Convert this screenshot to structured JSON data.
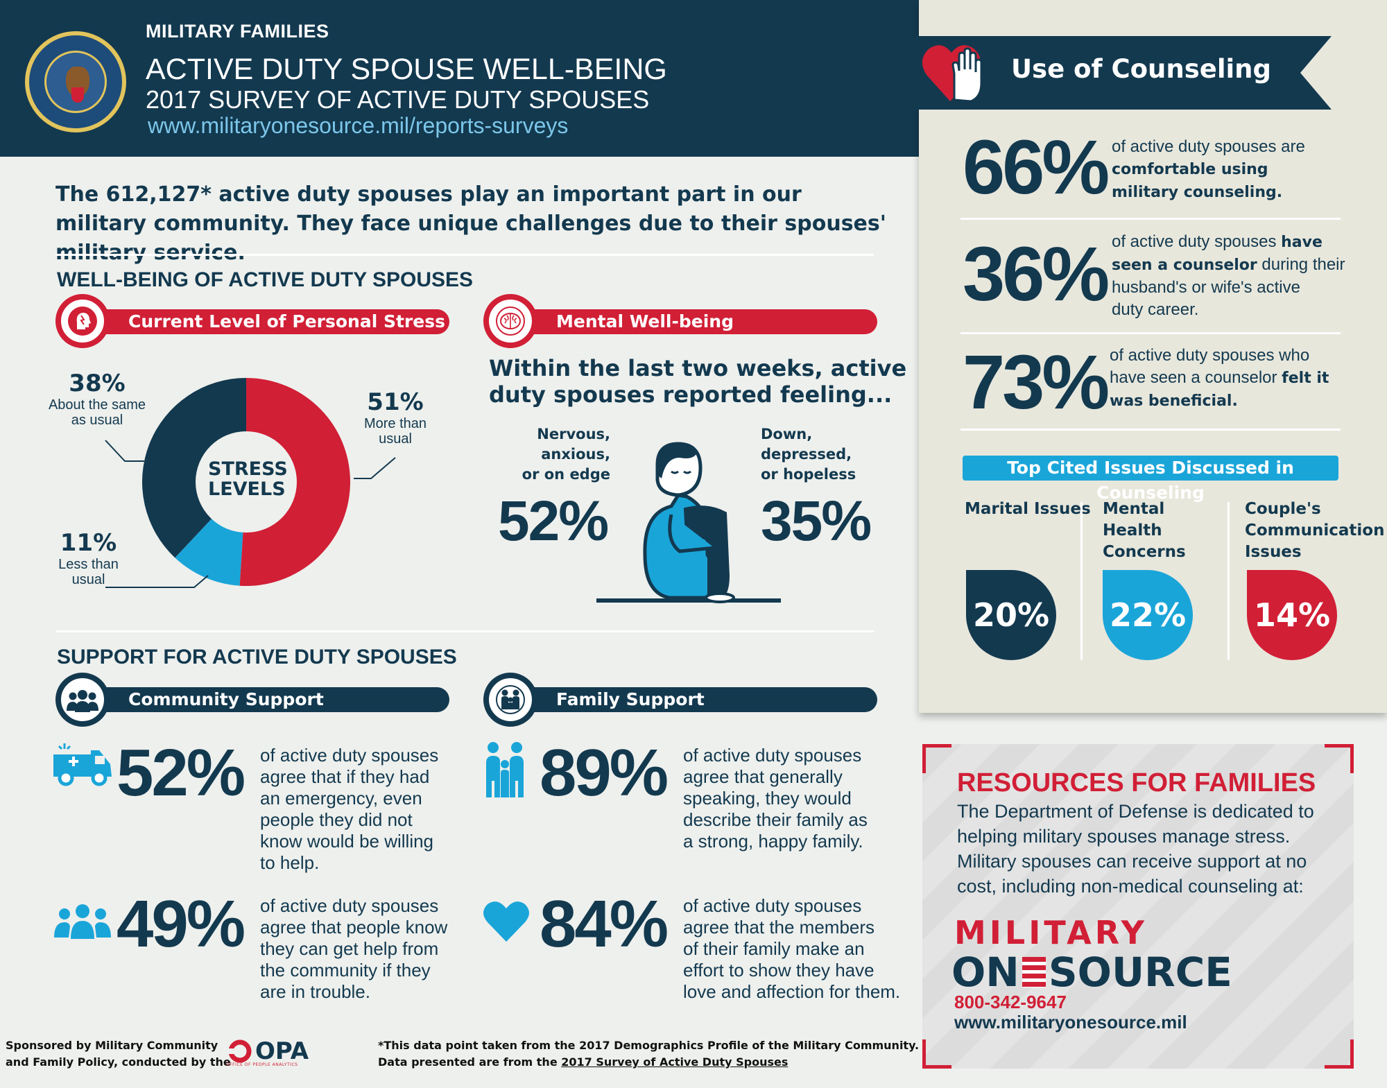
{
  "header": {
    "kicker": "MILITARY FAMILIES",
    "title": "ACTIVE DUTY SPOUSE WELL-BEING",
    "subtitle": "2017 SURVEY OF ACTIVE DUTY SPOUSES",
    "url": "www.militaryonesource.mil/reports-surveys",
    "seal_icon": "department-of-defense-seal"
  },
  "intro": "The 612,127* active duty spouses play an important part in our military community. They face unique challenges due to their spouses' military service.",
  "wellbeing": {
    "section_title": "WELL-BEING OF ACTIVE DUTY SPOUSES",
    "stress": {
      "banner": "Current Level of Personal Stress",
      "icon": "stress-head-icon",
      "center_label_1": "STRESS",
      "center_label_2": "LEVELS",
      "slices": [
        {
          "pct": "51%",
          "label": "More than usual",
          "value": 51,
          "color": "#d11f36"
        },
        {
          "pct": "11%",
          "label": "Less than usual",
          "value": 11,
          "color": "#1aa5d9"
        },
        {
          "pct": "38%",
          "label": "About the same as usual",
          "value": 38,
          "color": "#13394f"
        }
      ],
      "label_51_a": "More than",
      "label_51_b": "usual",
      "label_38_a": "About the same",
      "label_38_b": "as usual",
      "label_11_a": "Less than",
      "label_11_b": "usual"
    },
    "mental": {
      "banner": "Mental Well-being",
      "icon": "brain-icon",
      "question_1": "Within the last two weeks, active",
      "question_2": "duty spouses reported feeling...",
      "left_label": [
        "Nervous,",
        "anxious,",
        "or on edge"
      ],
      "left_pct": "52%",
      "right_label": [
        "Down,",
        "depressed,",
        "or hopeless"
      ],
      "right_pct": "35%"
    }
  },
  "support": {
    "section_title": "SUPPORT FOR ACTIVE DUTY SPOUSES",
    "community": {
      "banner": "Community Support",
      "icon": "group-icon",
      "stats": [
        {
          "pct": "52%",
          "icon": "ambulance-icon",
          "lines": [
            "of active duty spouses",
            "agree that if they had",
            "an emergency, even",
            "people they did not",
            "know would be willing",
            "to help."
          ]
        },
        {
          "pct": "49%",
          "icon": "people-icon",
          "lines": [
            "of active duty spouses",
            "agree that people know",
            "they can get help from",
            "the community if they",
            "are in trouble."
          ]
        }
      ]
    },
    "family": {
      "banner": "Family Support",
      "icon": "family-icon",
      "stats": [
        {
          "pct": "89%",
          "icon": "family-members-icon",
          "lines": [
            "of active duty spouses",
            "agree that generally",
            "speaking, they would",
            "describe their family as",
            "a strong, happy family."
          ]
        },
        {
          "pct": "84%",
          "icon": "heart-icon",
          "lines": [
            "of active duty spouses",
            "agree that the members",
            "of their family make an",
            "effort to show they have",
            "love and affection for them."
          ]
        }
      ]
    }
  },
  "counseling": {
    "title": "Use of Counseling",
    "icon": "heart-hand-icon",
    "stats": [
      {
        "pct": "66%",
        "parts": [
          [
            "of active duty spouses are",
            false
          ],
          [
            "comfortable using",
            true
          ],
          [
            "military counseling.",
            true
          ]
        ]
      },
      {
        "pct": "36%",
        "parts": [
          [
            "of active duty spouses ",
            false
          ],
          [
            "have",
            true
          ],
          [
            "seen a counselor",
            true
          ],
          [
            " during their",
            false
          ],
          [
            "husband's or wife's active",
            false
          ],
          [
            "duty career.",
            false
          ]
        ]
      },
      {
        "pct": "73%",
        "parts": [
          [
            "of active duty spouses who",
            false
          ],
          [
            "have seen a counselor ",
            false
          ],
          [
            "felt it",
            true
          ],
          [
            "was beneficial.",
            true
          ]
        ]
      }
    ],
    "text_66_1": "of active duty spouses are",
    "text_66_2": "comfortable using",
    "text_66_3": "military counseling.",
    "text_36_1a": "of active duty spouses ",
    "text_36_1b": "have",
    "text_36_2a": "seen a counselor",
    "text_36_2b": " during their",
    "text_36_3": "husband's or wife's active",
    "text_36_4": "duty career.",
    "text_73_1": "of active duty spouses who",
    "text_73_2a": "have seen a counselor ",
    "text_73_2b": "felt it",
    "text_73_3": "was beneficial.",
    "issues_title": "Top Cited Issues Discussed in Counseling",
    "issues": [
      {
        "label": [
          "Marital Issues"
        ],
        "pct": "20%",
        "color": "#13394f"
      },
      {
        "label": [
          "Mental",
          "Health",
          "Concerns"
        ],
        "pct": "22%",
        "color": "#1aa5d9"
      },
      {
        "label": [
          "Couple's",
          "Communication",
          "Issues"
        ],
        "pct": "14%",
        "color": "#d11f36"
      }
    ]
  },
  "resources": {
    "title": "RESOURCES FOR FAMILIES",
    "text": [
      "The Department of Defense is dedicated to",
      "helping military spouses manage stress.",
      "Military spouses can receive support at no",
      "cost, including non-medical counseling at:"
    ],
    "brand_1": "MILITARY",
    "brand_2a": "ON",
    "brand_2b": "SOURCE",
    "phone": "800-342-9647",
    "url": "www.militaryonesource.mil"
  },
  "footer": {
    "sponsor_1": "Sponsored by Military Community",
    "sponsor_2": "and Family Policy, conducted by the",
    "opa_logo": "OPA",
    "opa_sub": "OFFICE OF PEOPLE ANALYTICS",
    "note_1": "*This data point taken from the 2017 Demographics Profile of the Military Community.",
    "note_2a": "Data presented are from the ",
    "note_2b": "2017 Survey of Active Duty Spouses"
  }
}
